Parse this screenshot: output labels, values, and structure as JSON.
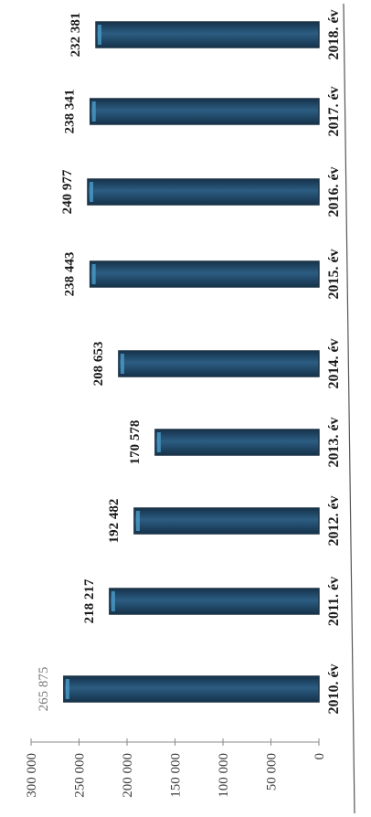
{
  "chart_data": {
    "type": "bar",
    "orientation": "rotated-90-ccw",
    "categories": [
      "2010. év",
      "2011. év",
      "2012. év",
      "2013. év",
      "2014. év",
      "2015. év",
      "2016. év",
      "2017. év",
      "2018. év"
    ],
    "values": [
      265875,
      218217,
      192482,
      170578,
      208653,
      238443,
      240977,
      238341,
      232381
    ],
    "value_labels": [
      "265 875",
      "218 217",
      "192 482",
      "170 578",
      "208 653",
      "238 443",
      "240 977",
      "238 341",
      "232 381"
    ],
    "y_ticks": [
      0,
      50000,
      100000,
      150000,
      200000,
      250000,
      300000
    ],
    "y_tick_labels": [
      "0",
      "50 000",
      "100 000",
      "150 000",
      "200 000",
      "250 000",
      "300 000"
    ],
    "ylim": [
      0,
      300000
    ],
    "grid": false,
    "legend": "none",
    "bar_color": "#1f4a6b",
    "bar_edge_color": "#1b3447",
    "bar_highlight_color": "#4a9cc9"
  }
}
